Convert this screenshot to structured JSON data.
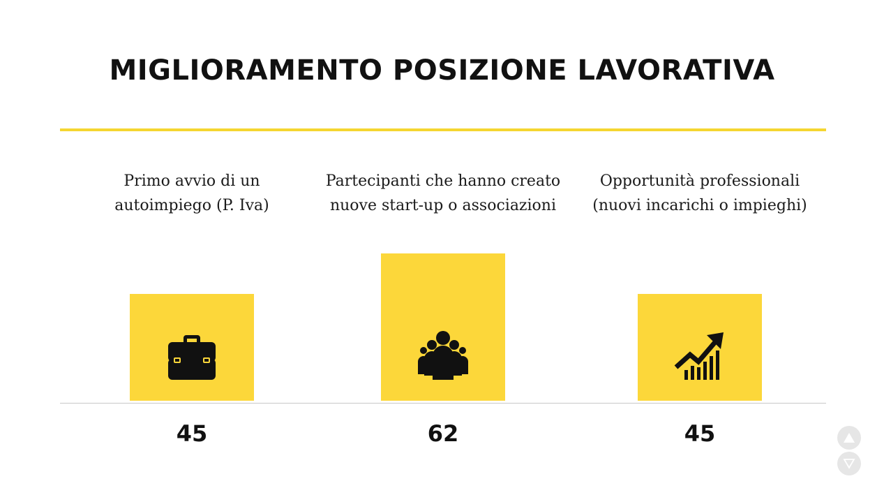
{
  "title": "MIGLIORAMENTO POSIZIONE LAVORATIVA",
  "colors": {
    "accent": "#fcd73a",
    "rule": "#f5d631",
    "text": "#111111"
  },
  "chart_data": {
    "type": "bar",
    "title": "MIGLIORAMENTO POSIZIONE LAVORATIVA",
    "categories": [
      [
        "Primo avvio di un",
        "autoimpiego (P. Iva)"
      ],
      [
        "Partecipanti che hanno creato",
        "nuove start-up o associazioni"
      ],
      [
        "Opportunità professionali",
        "(nuovi incarichi o impieghi)"
      ]
    ],
    "values": [
      45,
      62,
      45
    ],
    "icons": [
      "briefcase-icon",
      "group-icon",
      "growth-chart-icon"
    ],
    "ylim": [
      0,
      75
    ],
    "grid": false
  },
  "nav": {
    "up_icon": "triangle-up-icon",
    "down_icon": "triangle-down-icon"
  }
}
